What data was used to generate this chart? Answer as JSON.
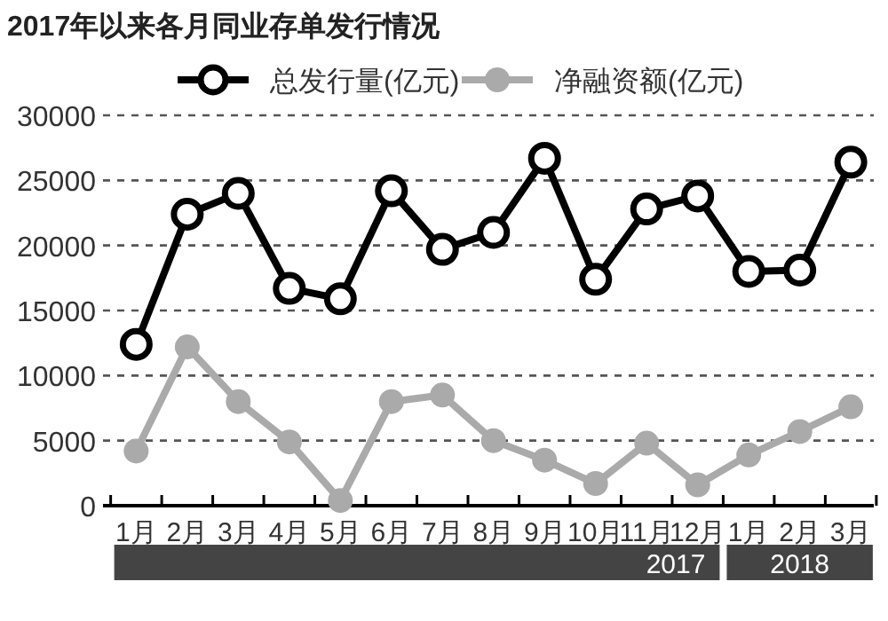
{
  "chart_data": {
    "type": "line",
    "title": "2017年以来各月同业存单发行情况",
    "categories": [
      "1月",
      "2月",
      "3月",
      "4月",
      "5月",
      "6月",
      "7月",
      "8月",
      "9月",
      "10月",
      "11月",
      "12月",
      "1月",
      "2月",
      "3月"
    ],
    "series": [
      {
        "name": "总发行量(亿元)",
        "color": "#000000",
        "values": [
          12400,
          22400,
          24000,
          16700,
          15900,
          24200,
          19700,
          21000,
          26700,
          17400,
          22800,
          23800,
          18000,
          18100,
          26400
        ]
      },
      {
        "name": "净融资额(亿元)",
        "color": "#aaaaaa",
        "values": [
          4200,
          12200,
          8000,
          4900,
          400,
          8000,
          8500,
          5000,
          3500,
          1700,
          4800,
          1600,
          3900,
          5700,
          7600
        ]
      }
    ],
    "annotations": [
      "2017",
      "2018"
    ],
    "ylim": [
      0,
      30000
    ],
    "yticks": [
      0,
      5000,
      10000,
      15000,
      20000,
      25000,
      30000
    ],
    "grid": "y",
    "legend": "top",
    "marker": "circle",
    "line_style": "solid"
  }
}
